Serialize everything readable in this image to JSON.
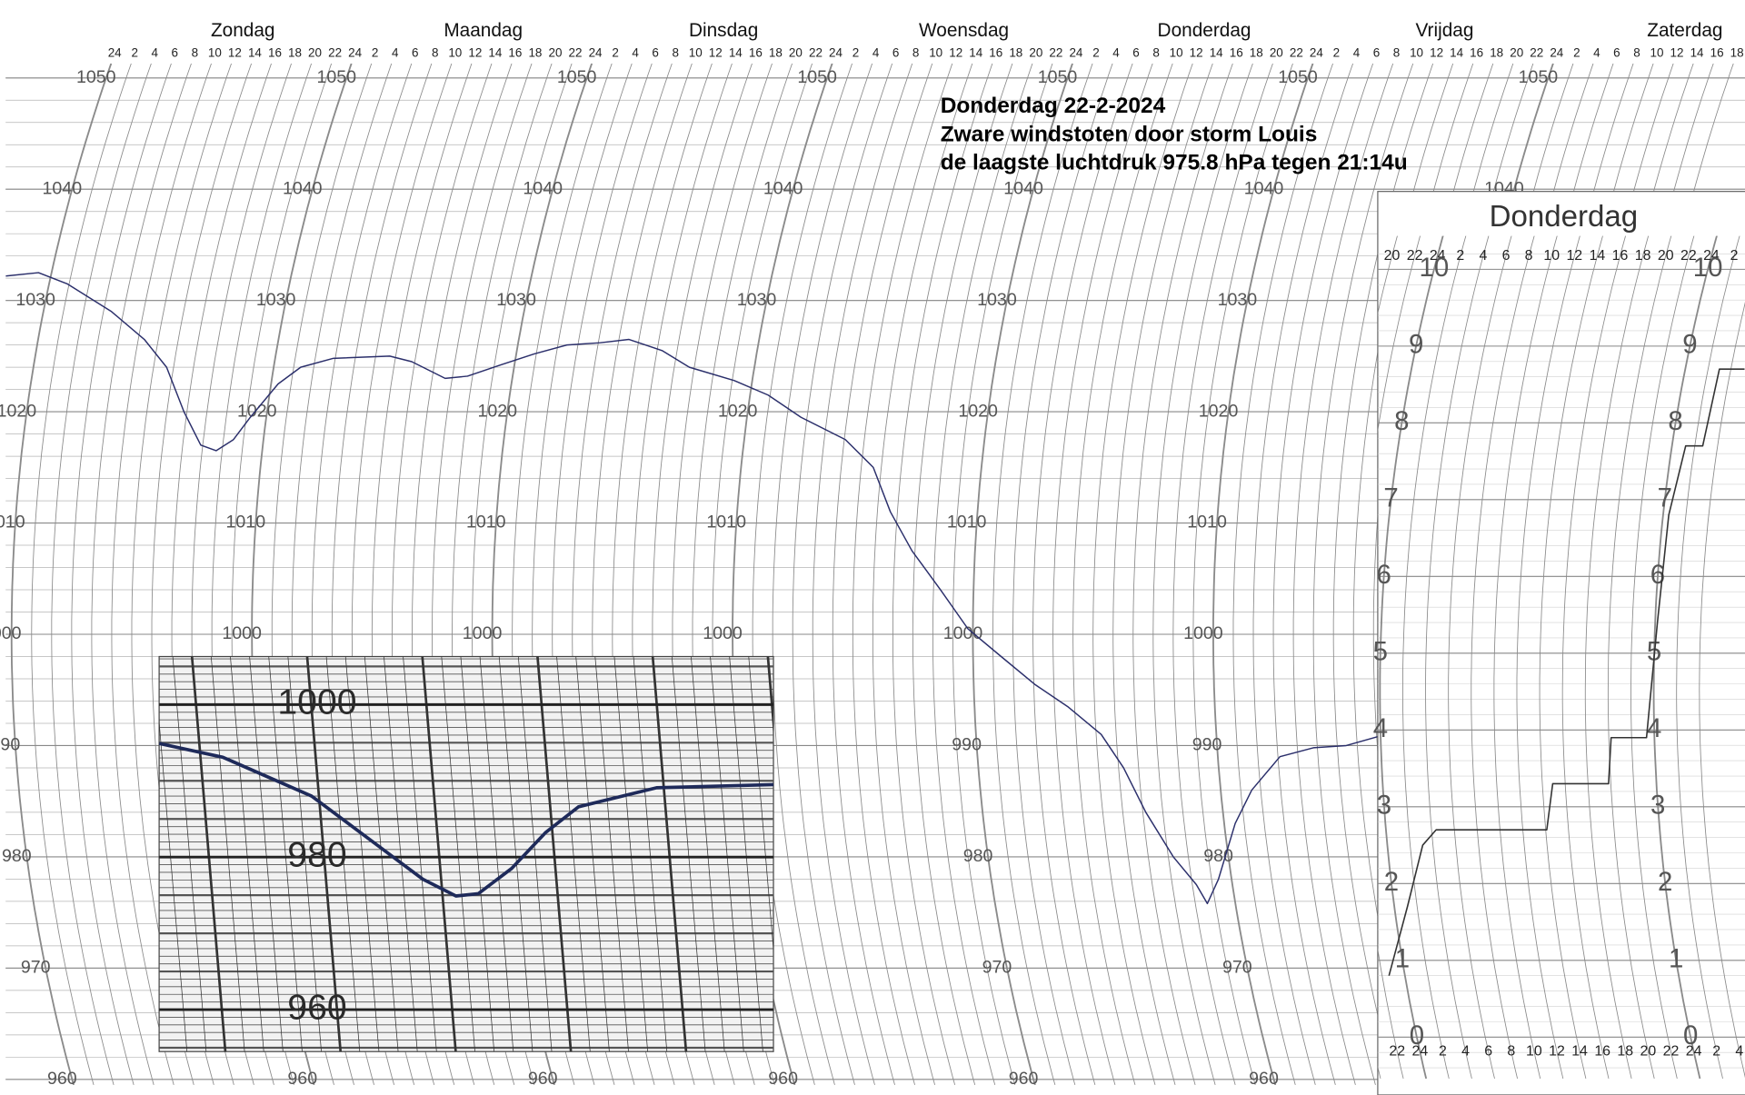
{
  "chart_data": [
    {
      "type": "line",
      "annotations": [
        "Donderdag 22-2-2024",
        "Zware windstoten door storm Louis",
        "de laagste luchtdruk 975.8 hPa tegen 21:14u"
      ],
      "days": [
        "Zondag",
        "Maandag",
        "Dinsdag",
        "Woensdag",
        "Donderdag",
        "Vrijdag",
        "Zaterdag"
      ],
      "x": [
        -4.5,
        -1.3,
        1.8,
        6.8,
        10.6,
        13.3,
        15.7,
        17.8,
        19.4,
        21.0,
        22.4,
        24.7,
        26.7,
        29.8,
        35.4,
        37.7,
        41.3,
        43.5,
        46.6,
        49.8,
        52.9,
        56.2,
        59.0,
        62.5,
        65.5,
        70.2,
        73.8,
        77.4,
        82.1,
        85.2,
        87.3,
        89.7,
        92.7,
        95.5,
        98.8,
        102.1,
        105.3,
        108.5,
        110.5,
        112.3,
        114.5,
        116.4,
        117.2,
        118.7,
        121.1,
        123.1,
        126.2,
        129.6,
        132.9,
        136.1
      ],
      "values": [
        1032.2,
        1032.5,
        1031.5,
        1029,
        1026.5,
        1024,
        1020,
        1017,
        1016.5,
        1017.5,
        1019.5,
        1022.5,
        1024,
        1024.8,
        1025,
        1024.5,
        1023,
        1023.2,
        1024.2,
        1025.2,
        1026,
        1026.2,
        1026.5,
        1025.5,
        1024,
        1022.8,
        1021.5,
        1019.5,
        1017.5,
        1015,
        1011,
        1007.5,
        1004,
        1000.5,
        998,
        995.5,
        993.5,
        991,
        988,
        984,
        980,
        977.5,
        975.8,
        978,
        983,
        986,
        989,
        989.8,
        990,
        990.8
      ],
      "color": "#2b2f6b",
      "xlim": [
        -0.6,
        173.1
      ],
      "ylim": [
        959.5,
        1051.3
      ],
      "yticks": [
        960,
        970,
        980,
        990,
        1000,
        1010,
        1020,
        1030,
        1040,
        1050
      ],
      "xticks": [
        {
          "value": 0,
          "label": "24"
        },
        2,
        4,
        6,
        8,
        10,
        12,
        14,
        16,
        18,
        20,
        22,
        24,
        {
          "value": 26,
          "label": "2"
        },
        {
          "value": 28,
          "label": "4"
        },
        {
          "value": 30,
          "label": "6"
        },
        {
          "value": 32,
          "label": "8"
        },
        {
          "value": 34,
          "label": "10"
        },
        {
          "value": 36,
          "label": "12"
        },
        {
          "value": 38,
          "label": "14"
        },
        {
          "value": 40,
          "label": "16"
        },
        {
          "value": 42,
          "label": "18"
        },
        {
          "value": 44,
          "label": "20"
        },
        {
          "value": 46,
          "label": "22"
        },
        {
          "value": 48,
          "label": "24"
        },
        {
          "value": 50,
          "label": "2"
        },
        {
          "value": 52,
          "label": "4"
        },
        {
          "value": 54,
          "label": "6"
        },
        {
          "value": 56,
          "label": "8"
        },
        {
          "value": 58,
          "label": "10"
        },
        {
          "value": 60,
          "label": "12"
        },
        {
          "value": 62,
          "label": "14"
        },
        {
          "value": 64,
          "label": "16"
        },
        {
          "value": 66,
          "label": "18"
        },
        {
          "value": 68,
          "label": "20"
        },
        {
          "value": 70,
          "label": "22"
        },
        {
          "value": 72,
          "label": "24"
        },
        {
          "value": 74,
          "label": "2"
        },
        {
          "value": 76,
          "label": "4"
        },
        {
          "value": 78,
          "label": "6"
        },
        {
          "value": 80,
          "label": "8"
        },
        {
          "value": 82,
          "label": "10"
        },
        {
          "value": 84,
          "label": "12"
        },
        {
          "value": 86,
          "label": "14"
        },
        {
          "value": 88,
          "label": "16"
        },
        {
          "value": 90,
          "label": "18"
        },
        {
          "value": 92,
          "label": "20"
        },
        {
          "value": 94,
          "label": "22"
        },
        {
          "value": 96,
          "label": "24"
        },
        {
          "value": 98,
          "label": "2"
        },
        {
          "value": 100,
          "label": "4"
        },
        {
          "value": 102,
          "label": "6"
        },
        {
          "value": 104,
          "label": "8"
        },
        {
          "value": 106,
          "label": "10"
        },
        {
          "value": 108,
          "label": "12"
        },
        {
          "value": 110,
          "label": "14"
        },
        {
          "value": 112,
          "label": "16"
        },
        {
          "value": 114,
          "label": "18"
        },
        {
          "value": 116,
          "label": "20"
        },
        {
          "value": 118,
          "label": "22"
        },
        {
          "value": 120,
          "label": "24"
        },
        {
          "value": 122,
          "label": "2"
        },
        {
          "value": 124,
          "label": "4"
        },
        {
          "value": 126,
          "label": "6"
        },
        {
          "value": 128,
          "label": "8"
        },
        {
          "value": 130,
          "label": "10"
        },
        {
          "value": 132,
          "label": "12"
        },
        {
          "value": 134,
          "label": "14"
        },
        {
          "value": 136,
          "label": "16"
        },
        {
          "value": 138,
          "label": "18"
        },
        {
          "value": 140,
          "label": "20"
        },
        {
          "value": 142,
          "label": "22"
        },
        {
          "value": 144,
          "label": "24"
        },
        {
          "value": 146,
          "label": "2"
        },
        {
          "value": 148,
          "label": "4"
        },
        {
          "value": 150,
          "label": "6"
        },
        {
          "value": 152,
          "label": "8"
        },
        {
          "value": 154,
          "label": "10"
        },
        {
          "value": 156,
          "label": "12"
        },
        {
          "value": 158,
          "label": "14"
        },
        {
          "value": 160,
          "label": "16"
        },
        {
          "value": 162,
          "label": "18"
        }
      ],
      "grid": true
    },
    {
      "type": "line",
      "x": [
        15.95,
        17.06,
        18.61,
        19.77,
        20.55,
        21.13,
        21.52,
        22.1,
        22.69,
        23.27,
        24.63,
        26.67
      ],
      "values": [
        994.9,
        993.1,
        988.0,
        981.5,
        977.1,
        974.9,
        975.2,
        978.5,
        983.2,
        986.6,
        989.1,
        989.5
      ],
      "color": "#1e2a5a",
      "xlim": [
        15.95,
        26.67
      ],
      "ylim": [
        954.5,
        1006.3
      ],
      "yticks": [
        960,
        980,
        1000
      ],
      "grid": true
    },
    {
      "type": "line",
      "title": "Donderdag",
      "x": [
        -1.4,
        1.15,
        3.1,
        4.4,
        14.1,
        14.9,
        19.8,
        20.2,
        23.3,
        24.2,
        24.5,
        25.2,
        26.7,
        27.0,
        29.2
      ],
      "values": [
        0.8,
        1.7,
        2.5,
        2.7,
        2.7,
        3.3,
        3.3,
        3.9,
        3.9,
        5.4,
        6.8,
        7.7,
        7.7,
        8.7,
        8.7
      ],
      "color": "#333333",
      "xlim": [
        0,
        31.9
      ],
      "ylim": [
        -0.5,
        10.3
      ],
      "yticks": [
        0,
        1,
        2,
        3,
        4,
        5,
        6,
        7,
        8,
        9,
        10
      ],
      "xticks": [
        {
          "value": -4,
          "label": "20"
        },
        {
          "value": -2,
          "label": "22"
        },
        {
          "value": 0,
          "label": "24"
        },
        2,
        4,
        6,
        8,
        10,
        12,
        14,
        16,
        18,
        20,
        22,
        24,
        {
          "value": 26,
          "label": "2"
        },
        {
          "value": 28,
          "label": "4"
        }
      ],
      "grid": true
    }
  ]
}
